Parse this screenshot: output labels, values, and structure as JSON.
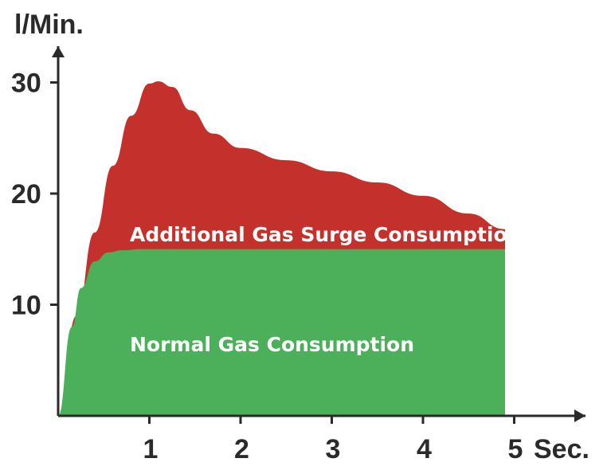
{
  "chart_data": {
    "type": "area",
    "xlabel": "Sec.",
    "ylabel": "l/Min.",
    "xlim": [
      0,
      5
    ],
    "ylim": [
      0,
      30
    ],
    "x_ticks": [
      "1",
      "2",
      "3",
      "4",
      "5"
    ],
    "y_ticks": [
      "10",
      "20",
      "30"
    ],
    "grid": false,
    "legend": "none",
    "series": [
      {
        "name": "Normal Gas Consumption",
        "color": "#4caf5a",
        "x": [
          0.0,
          0.15,
          0.25,
          0.4,
          0.55,
          0.7,
          0.9,
          1.2,
          2.0,
          3.0,
          4.0,
          4.9
        ],
        "y": [
          0.0,
          8.0,
          11.5,
          13.9,
          14.7,
          14.9,
          15.0,
          15.0,
          15.0,
          15.0,
          15.0,
          15.0
        ]
      },
      {
        "name": "Additional Gas Surge Consumption",
        "color": "#c4302b",
        "x": [
          0.0,
          0.2,
          0.4,
          0.6,
          0.8,
          1.0,
          1.1,
          1.25,
          1.45,
          1.7,
          2.0,
          2.5,
          3.0,
          3.5,
          4.0,
          4.5,
          4.9
        ],
        "y": [
          0.0,
          9.0,
          16.5,
          22.5,
          27.0,
          29.9,
          30.1,
          29.6,
          27.5,
          25.4,
          24.1,
          23.0,
          22.0,
          21.0,
          19.8,
          18.2,
          16.8
        ]
      }
    ]
  }
}
